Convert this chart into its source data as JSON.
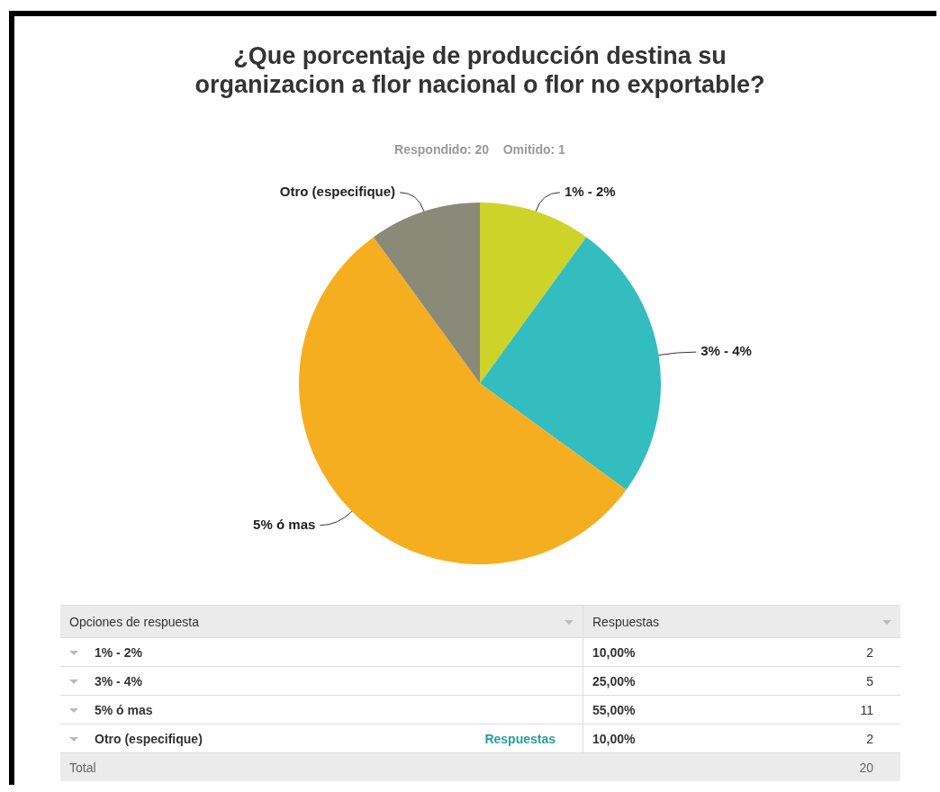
{
  "chart_data": {
    "type": "pie",
    "title": "¿Que porcentaje de producción destina su organizacion a flor nacional o flor no exportable?",
    "subtitle": "Respondido: 20    Omitido: 1",
    "categories": [
      "1% - 2%",
      "3% - 4%",
      "5% ó mas",
      "Otro (especifique)"
    ],
    "values": [
      10,
      25,
      55,
      10
    ],
    "colors": [
      "#cdd329",
      "#33bdbf",
      "#f6ae21",
      "#8a8a78"
    ],
    "annotations": [
      "Opciones de respuesta",
      "Respuestas",
      "10,00%",
      "2",
      "25,00%",
      "5",
      "55,00%",
      "11",
      "10,00%",
      "2",
      "Respuestas",
      "Total",
      "20"
    ]
  }
}
